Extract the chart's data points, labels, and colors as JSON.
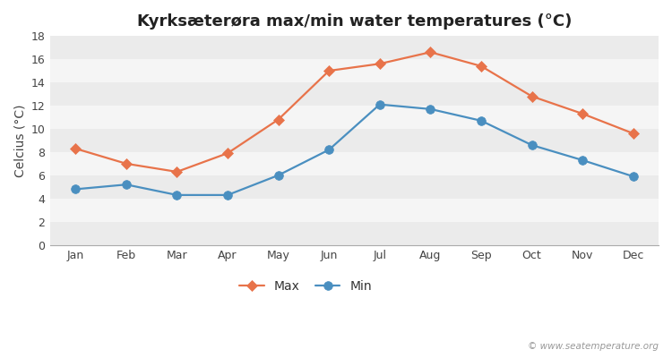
{
  "title": "Kyrksæterøra max/min water temperatures (°C)",
  "ylabel": "Celcius (°C)",
  "months": [
    "Jan",
    "Feb",
    "Mar",
    "Apr",
    "May",
    "Jun",
    "Jul",
    "Aug",
    "Sep",
    "Oct",
    "Nov",
    "Dec"
  ],
  "max_values": [
    8.3,
    7.0,
    6.3,
    7.9,
    10.8,
    15.0,
    15.6,
    16.6,
    15.4,
    12.8,
    11.3,
    9.6
  ],
  "min_values": [
    4.8,
    5.2,
    4.3,
    4.3,
    6.0,
    8.2,
    12.1,
    11.7,
    10.7,
    8.6,
    7.3,
    5.9
  ],
  "max_color": "#e8734a",
  "min_color": "#4a8fc0",
  "ylim": [
    0,
    18
  ],
  "yticks": [
    0,
    2,
    4,
    6,
    8,
    10,
    12,
    14,
    16,
    18
  ],
  "band_colors": [
    "#ebebeb",
    "#f5f5f5"
  ],
  "figure_bg": "#ffffff",
  "legend_labels": [
    "Max",
    "Min"
  ],
  "watermark": "© www.seatemperature.org",
  "title_fontsize": 13,
  "axis_label_fontsize": 10,
  "tick_fontsize": 9,
  "legend_fontsize": 10,
  "line_width": 1.6,
  "max_marker_size": 6,
  "min_marker_size": 7
}
